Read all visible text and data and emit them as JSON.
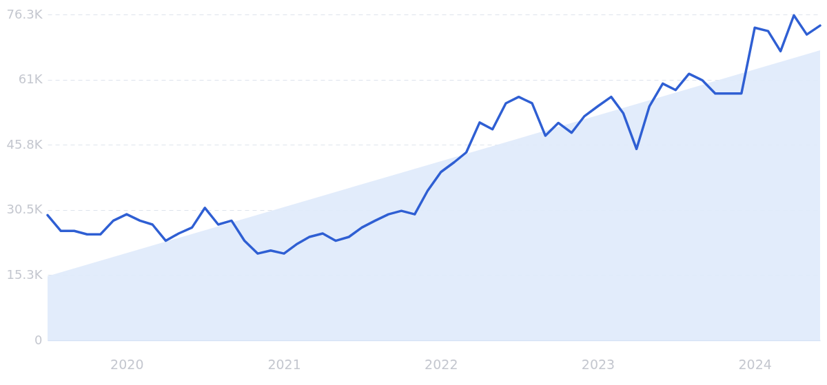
{
  "chart_data": {
    "type": "line",
    "x": [
      "2019-07",
      "2019-08",
      "2019-09",
      "2019-10",
      "2019-11",
      "2019-12",
      "2020-01",
      "2020-02",
      "2020-03",
      "2020-04",
      "2020-05",
      "2020-06",
      "2020-07",
      "2020-08",
      "2020-09",
      "2020-10",
      "2020-11",
      "2020-12",
      "2021-01",
      "2021-02",
      "2021-03",
      "2021-04",
      "2021-05",
      "2021-06",
      "2021-07",
      "2021-08",
      "2021-09",
      "2021-10",
      "2021-11",
      "2021-12",
      "2022-01",
      "2022-02",
      "2022-03",
      "2022-04",
      "2022-05",
      "2022-06",
      "2022-07",
      "2022-08",
      "2022-09",
      "2022-10",
      "2022-11",
      "2022-12",
      "2023-01",
      "2023-02",
      "2023-03",
      "2023-04",
      "2023-05",
      "2023-06",
      "2023-07",
      "2023-08",
      "2023-09",
      "2023-10",
      "2023-11",
      "2023-12",
      "2024-01",
      "2024-02",
      "2024-03",
      "2024-04",
      "2024-05",
      "2024-06"
    ],
    "series": [
      {
        "type": "area",
        "color": "#dfeafb",
        "x": [
          "2019-07",
          "2024-06"
        ],
        "values": [
          15000,
          67900
        ]
      },
      {
        "color": "#2f5fd3",
        "values": [
          29300,
          25600,
          25600,
          24800,
          24800,
          28000,
          29500,
          28000,
          27100,
          23300,
          25000,
          26400,
          31000,
          27100,
          28000,
          23300,
          20300,
          21000,
          20300,
          22600,
          24200,
          25000,
          23300,
          24200,
          26400,
          28000,
          29500,
          30300,
          29500,
          35000,
          39400,
          41700,
          44000,
          51000,
          49400,
          55500,
          57000,
          55500,
          47900,
          50900,
          48600,
          52500,
          54800,
          57000,
          53200,
          44800,
          54800,
          60100,
          58600,
          62400,
          60900,
          57800,
          57800,
          57800,
          73200,
          72400,
          67700,
          76100,
          71600,
          73700
        ]
      }
    ],
    "xlim": [
      "2019-07",
      "2024-06"
    ],
    "xticks": [
      {
        "value": "2020-01",
        "label": "2020"
      },
      {
        "value": "2021-01",
        "label": "2021"
      },
      {
        "value": "2022-01",
        "label": "2022"
      },
      {
        "value": "2023-01",
        "label": "2023"
      },
      {
        "value": "2024-01",
        "label": "2024"
      }
    ],
    "ylim": [
      0,
      76300
    ],
    "yticks": [
      0,
      {
        "value": 15300,
        "label": "15.3K"
      },
      {
        "value": 30500,
        "label": "30.5K"
      },
      {
        "value": 45800,
        "label": "45.8K"
      },
      {
        "value": 61000,
        "label": "61K"
      },
      {
        "value": 76300,
        "label": "76.3K"
      }
    ],
    "grid": "y",
    "line_style": "solid",
    "marker": "none"
  }
}
